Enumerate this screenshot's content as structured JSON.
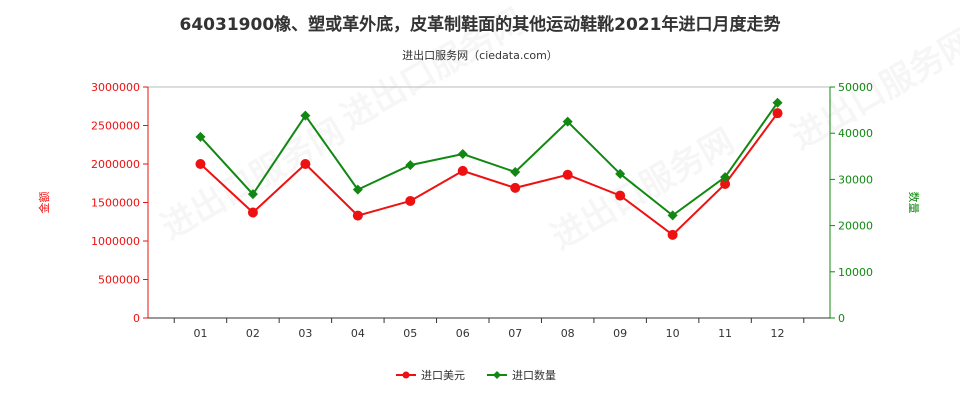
{
  "chart_data": {
    "type": "line",
    "title": "64031900橡、塑或革外底，皮革制鞋面的其他运动鞋靴2021年进口月度走势",
    "subtitle": "进出口服务网（ciedata.com）",
    "categories": [
      "01",
      "02",
      "03",
      "04",
      "05",
      "06",
      "07",
      "08",
      "09",
      "10",
      "11",
      "12"
    ],
    "y_left": {
      "label": "金额",
      "range": [
        0,
        3000000
      ],
      "ticks": [
        "0",
        "500000",
        "1000000",
        "1500000",
        "2000000",
        "2500000",
        "3000000"
      ],
      "tick_values": [
        0,
        500000,
        1000000,
        1500000,
        2000000,
        2500000,
        3000000
      ]
    },
    "y_right": {
      "label": "数量",
      "range": [
        0,
        50000
      ],
      "ticks": [
        "0",
        "10000",
        "20000",
        "30000",
        "40000",
        "50000"
      ],
      "tick_values": [
        0,
        10000,
        20000,
        30000,
        40000,
        50000
      ]
    },
    "series": [
      {
        "name": "进口美元",
        "axis": "left",
        "color": "#ee1111",
        "marker": "circle",
        "values": [
          2000000,
          1370000,
          2000000,
          1330000,
          1520000,
          1910000,
          1690000,
          1860000,
          1590000,
          1080000,
          1740000,
          2660000
        ]
      },
      {
        "name": "进口数量",
        "axis": "right",
        "color": "#118811",
        "marker": "diamond",
        "values": [
          39200,
          26800,
          43800,
          27800,
          33100,
          35500,
          31600,
          42500,
          31200,
          22200,
          30500,
          46600
        ]
      }
    ],
    "legend_position": "bottom",
    "grid": false,
    "watermark": "进出口服务网"
  }
}
